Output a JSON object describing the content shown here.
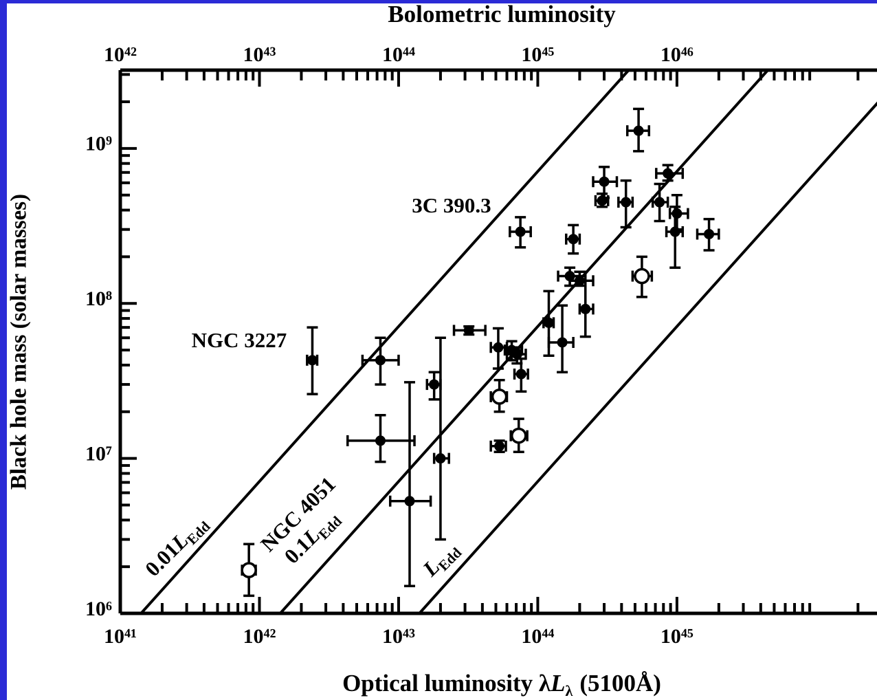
{
  "chart_data": {
    "type": "scatter",
    "title": "Bolometric luminosity",
    "xlabel": {
      "text": "Optical luminosity λ",
      "symbol": "L",
      "subscript": "λ",
      "tail": "(5100Å)"
    },
    "ylabel": "Black hole mass (solar masses)",
    "xscale": "log",
    "yscale": "log",
    "minor_ticks": true,
    "xlim": [
      1e+41,
      3e+46
    ],
    "xticks": [
      {
        "value": 1e+41,
        "label": "10⁴¹"
      },
      {
        "value": 1e+42,
        "label": "10⁴²"
      },
      {
        "value": 1e+43,
        "label": "10⁴³"
      },
      {
        "value": 1e+44,
        "label": "10⁴⁴"
      },
      {
        "value": 1e+45,
        "label": "10⁴⁵"
      }
    ],
    "x2lim": [
      1e+42,
      3e+47
    ],
    "x2ticks": [
      {
        "value": 1e+42,
        "label": "10⁴²"
      },
      {
        "value": 1e+43,
        "label": "10⁴³"
      },
      {
        "value": 1e+44,
        "label": "10⁴⁴"
      },
      {
        "value": 1e+45,
        "label": "10⁴⁵"
      },
      {
        "value": 1e+46,
        "label": "10⁴⁶"
      }
    ],
    "ylim": [
      1000000.0,
      3200000000.0
    ],
    "yticks": [
      {
        "value": 1000000.0,
        "label": "10⁶"
      },
      {
        "value": 10000000.0,
        "label": "10⁷"
      },
      {
        "value": 100000000.0,
        "label": "10⁸"
      },
      {
        "value": 1000000000.0,
        "label": "10⁹"
      }
    ],
    "lines": [
      {
        "coef": "0.01",
        "symbol": "L",
        "subscript": "Edd",
        "color": "#000000",
        "x": [
          1.41e+41,
          4.5e+44
        ],
        "y": [
          1000000.0,
          3200000000.0
        ]
      },
      {
        "coef": "0.1",
        "symbol": "L",
        "subscript": "Edd",
        "color": "#000000",
        "x": [
          1.41e+42,
          4.5e+45
        ],
        "y": [
          1000000.0,
          3200000000.0
        ]
      },
      {
        "symbol": "L",
        "subscript": "Edd",
        "color": "#000000",
        "x": [
          1.41e+43,
          4.5e+46
        ],
        "y": [
          1000000.0,
          3200000000.0
        ]
      }
    ],
    "annotations": [
      "3C 390.3",
      "NGC 3227",
      "NGC 4051"
    ],
    "series": [
      {
        "marker": "filled",
        "color": "#000000",
        "x": [
          5.3e+44,
          3e+44,
          2.9e+44,
          4.3e+44,
          8.6e+44,
          7.5e+44,
          1e+45,
          9.7e+44,
          1.7e+45,
          7.5e+43,
          1.8e+44,
          1.7e+44,
          2e+44,
          2.2e+44,
          1.2e+44,
          1.5e+44,
          3.2e+43,
          5.2e+43,
          6.5e+43,
          7.1e+43,
          7.6e+43,
          2.4e+42,
          7.4e+42,
          1.8e+43,
          2e+43,
          7.4e+42,
          1.2e+43,
          5.3e+43
        ],
        "x_lo": [
          4.4e+44,
          2.5e+44,
          2.6e+44,
          3.8e+44,
          7.1e+44,
          6.7e+44,
          8.9e+44,
          8.4e+44,
          1.4e+45,
          6.3e+43,
          1.6e+44,
          1.4e+44,
          1.7e+44,
          2e+44,
          1.1e+44,
          1.2e+44,
          2.5e+43,
          4.6e+43,
          5.8e+43,
          6e+43,
          6.8e+43,
          2.2e+42,
          5.5e+42,
          1.6e+43,
          1.8e+43,
          4.3e+42,
          8.7e+42,
          4.6e+43
        ],
        "x_hi": [
          6.3e+44,
          3.7e+44,
          3.2e+44,
          4.8e+44,
          1.1e+45,
          8.6e+44,
          1.2e+45,
          1.1e+45,
          2e+45,
          8.9e+43,
          2e+44,
          2.2e+44,
          2.5e+44,
          2.5e+44,
          1.3e+44,
          1.8e+44,
          4.2e+43,
          6e+43,
          7.7e+43,
          8.2e+43,
          8.5e+43,
          2.6e+42,
          1e+43,
          2e+43,
          2.3e+43,
          1.3e+43,
          1.7e+43,
          5.9e+43
        ],
        "y": [
          1300000000.0,
          610000000.0,
          460000000.0,
          450000000.0,
          690000000.0,
          450000000.0,
          380000000.0,
          290000000.0,
          280000000.0,
          290000000.0,
          260000000.0,
          150000000.0,
          140000000.0,
          92000000.0,
          75000000.0,
          56000000.0,
          67000000.0,
          52000000.0,
          50000000.0,
          47000000.0,
          35000000.0,
          43000000.0,
          43000000.0,
          30000000.0,
          10000000.0,
          13000000.0,
          5300000.0,
          12000000.0
        ],
        "y_lo": [
          960000000.0,
          480000000.0,
          420000000.0,
          310000000.0,
          620000000.0,
          340000000.0,
          300000000.0,
          170000000.0,
          220000000.0,
          230000000.0,
          210000000.0,
          130000000.0,
          130000000.0,
          61000000.0,
          46000000.0,
          36000000.0,
          63000000.0,
          38000000.0,
          43000000.0,
          41000000.0,
          27000000.0,
          26000000.0,
          30000000.0,
          24000000.0,
          3000000.0,
          9500000.0,
          1500000.0,
          11000000.0
        ],
        "y_hi": [
          1800000000.0,
          760000000.0,
          510000000.0,
          620000000.0,
          780000000.0,
          590000000.0,
          500000000.0,
          420000000.0,
          350000000.0,
          360000000.0,
          320000000.0,
          170000000.0,
          160000000.0,
          140000000.0,
          120000000.0,
          97000000.0,
          71000000.0,
          69000000.0,
          57000000.0,
          52000000.0,
          44000000.0,
          70000000.0,
          60000000.0,
          36000000.0,
          60000000.0,
          19000000.0,
          31000000.0,
          13000000.0
        ]
      },
      {
        "marker": "open",
        "color": "#000000",
        "x": [
          5.3e+43,
          7.3e+43,
          5.6e+44,
          8.4e+41
        ],
        "x_lo": [
          4.6e+43,
          6.4e+43,
          4.8e+44,
          7.5e+41
        ],
        "x_hi": [
          6e+43,
          8.4e+43,
          6.6e+44,
          9.4e+41
        ],
        "y": [
          25000000.0,
          14000000.0,
          150000000.0,
          1900000.0
        ],
        "y_lo": [
          20000000.0,
          11000000.0,
          110000000.0,
          1300000.0
        ],
        "y_hi": [
          32000000.0,
          18000000.0,
          200000000.0,
          2800000.0
        ]
      }
    ]
  }
}
